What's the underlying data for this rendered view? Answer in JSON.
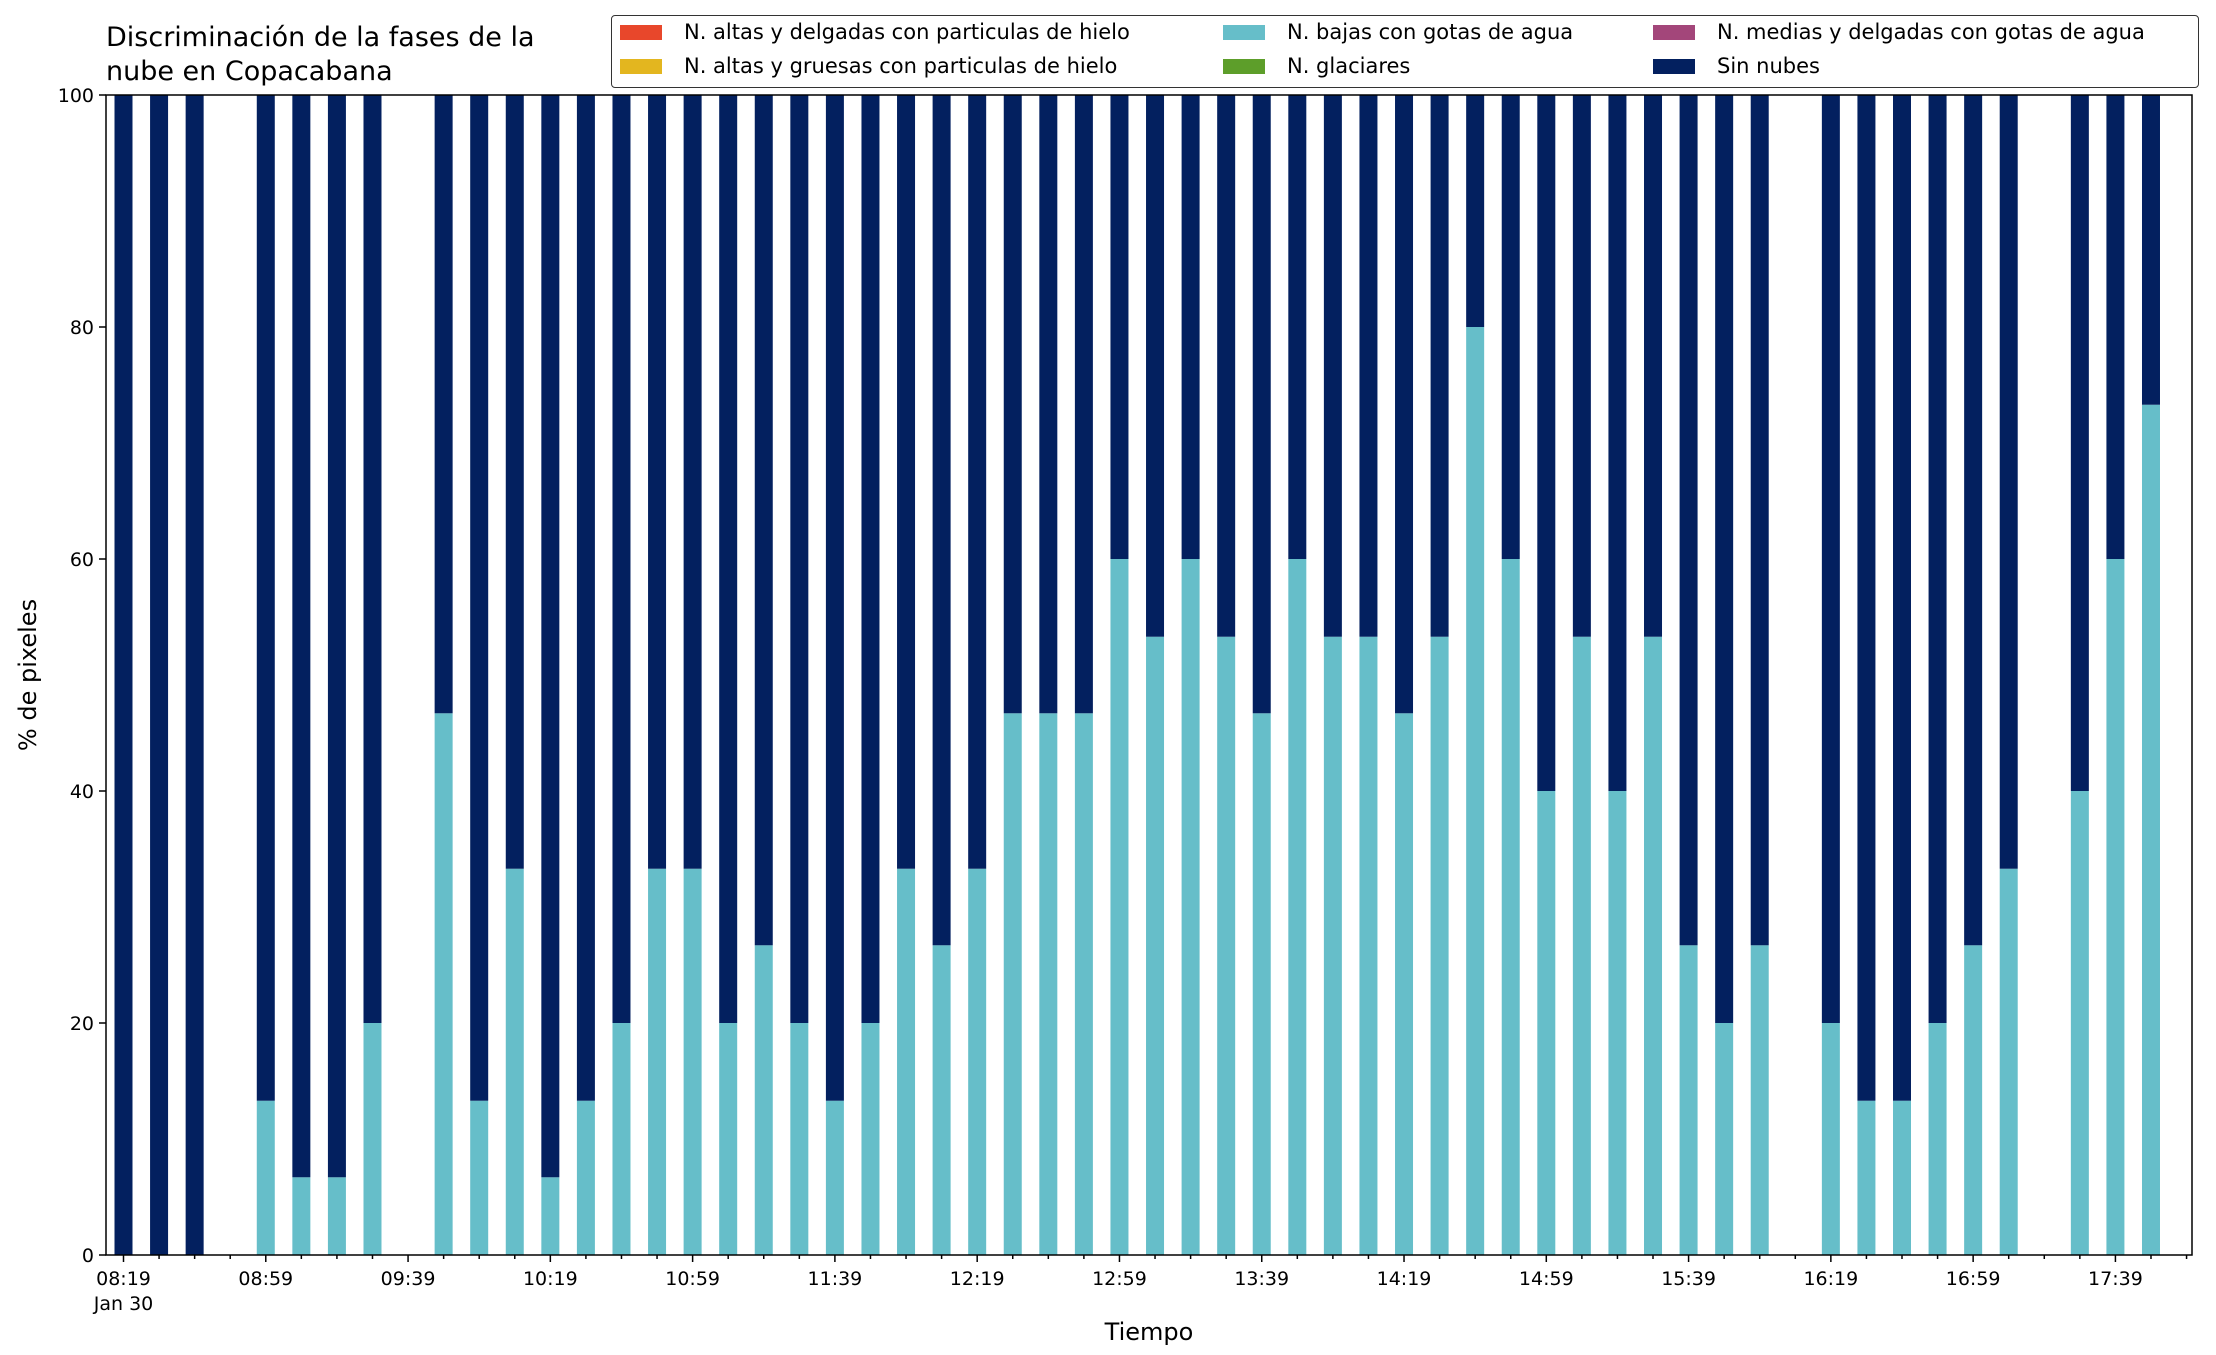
{
  "title_lines": [
    "Discriminación de la fases de la",
    "nube en Copacabana"
  ],
  "chart_data": {
    "type": "bar",
    "stacked": true,
    "title": "Discriminación de la fases de la nube en Copacabana",
    "xlabel": "Tiempo",
    "ylabel": "% de pixeles",
    "ylim": [
      0,
      100
    ],
    "yticks": [
      0,
      20,
      40,
      60,
      80,
      100
    ],
    "x": [
      "08:19",
      "08:29",
      "08:39",
      "08:49",
      "08:59",
      "09:09",
      "09:19",
      "09:29",
      "09:39",
      "09:49",
      "09:59",
      "10:09",
      "10:19",
      "10:29",
      "10:39",
      "10:49",
      "10:59",
      "11:09",
      "11:19",
      "11:29",
      "11:39",
      "11:49",
      "11:59",
      "12:09",
      "12:19",
      "12:29",
      "12:39",
      "12:49",
      "12:59",
      "13:09",
      "13:19",
      "13:29",
      "13:39",
      "13:49",
      "13:59",
      "14:09",
      "14:19",
      "14:29",
      "14:39",
      "14:49",
      "14:59",
      "15:09",
      "15:19",
      "15:29",
      "15:39",
      "15:49",
      "15:59",
      "16:09",
      "16:19",
      "16:29",
      "16:39",
      "16:49",
      "16:59",
      "17:09",
      "17:19",
      "17:29",
      "17:39",
      "17:49",
      "17:59"
    ],
    "xtick_labels": [
      "08:19",
      "08:59",
      "09:39",
      "10:19",
      "10:59",
      "11:39",
      "12:19",
      "12:59",
      "13:39",
      "14:19",
      "14:59",
      "15:39",
      "16:19",
      "16:59",
      "17:39"
    ],
    "xtick_sublabel": "Jan 30",
    "legend_position": "top-right",
    "legend_columns": 3,
    "series": [
      {
        "name": "N. altas y delgadas con particulas de hielo",
        "color": "#e8472b",
        "values": [
          0,
          0,
          0,
          null,
          0,
          0,
          0,
          0,
          null,
          0,
          0,
          0,
          0,
          0,
          0,
          0,
          0,
          0,
          0,
          0,
          0,
          0,
          0,
          0,
          0,
          0,
          0,
          0,
          0,
          0,
          0,
          0,
          0,
          0,
          0,
          0,
          0,
          0,
          0,
          0,
          0,
          0,
          0,
          0,
          0,
          0,
          0,
          null,
          0,
          0,
          0,
          0,
          0,
          0,
          null,
          0,
          0,
          0,
          null
        ]
      },
      {
        "name": "N. altas y gruesas con particulas de hielo",
        "color": "#e3b61f",
        "values": [
          0,
          0,
          0,
          null,
          0,
          0,
          0,
          0,
          null,
          0,
          0,
          0,
          0,
          0,
          0,
          0,
          0,
          0,
          0,
          0,
          0,
          0,
          0,
          0,
          0,
          0,
          0,
          0,
          0,
          0,
          0,
          0,
          0,
          0,
          0,
          0,
          0,
          0,
          0,
          0,
          0,
          0,
          0,
          0,
          0,
          0,
          0,
          null,
          0,
          0,
          0,
          0,
          0,
          0,
          null,
          0,
          0,
          0,
          null
        ]
      },
      {
        "name": "N. bajas con gotas de agua",
        "color": "#66bec9",
        "values": [
          0,
          0,
          0,
          null,
          13.3,
          6.7,
          6.7,
          20,
          null,
          46.7,
          13.3,
          33.3,
          6.7,
          13.3,
          20,
          33.3,
          33.3,
          20,
          26.7,
          20,
          13.3,
          20,
          33.3,
          26.7,
          33.3,
          46.7,
          46.7,
          46.7,
          60,
          53.3,
          60,
          53.3,
          46.7,
          60,
          53.3,
          53.3,
          46.7,
          53.3,
          80,
          60,
          40,
          53.3,
          40,
          53.3,
          26.7,
          20,
          26.7,
          null,
          20,
          13.3,
          13.3,
          20,
          26.7,
          33.3,
          null,
          40,
          60,
          73.3,
          null
        ]
      },
      {
        "name": "N. glaciares",
        "color": "#5d9e2a",
        "values": [
          0,
          0,
          0,
          null,
          0,
          0,
          0,
          0,
          null,
          0,
          0,
          0,
          0,
          0,
          0,
          0,
          0,
          0,
          0,
          0,
          0,
          0,
          0,
          0,
          0,
          0,
          0,
          0,
          0,
          0,
          0,
          0,
          0,
          0,
          0,
          0,
          0,
          0,
          0,
          0,
          0,
          0,
          0,
          0,
          0,
          0,
          0,
          null,
          0,
          0,
          0,
          0,
          0,
          0,
          null,
          0,
          0,
          0,
          null
        ]
      },
      {
        "name": "N. medias y delgadas con gotas de agua",
        "color": "#a3467a",
        "values": [
          0,
          0,
          0,
          null,
          0,
          0,
          0,
          0,
          null,
          0,
          0,
          0,
          0,
          0,
          0,
          0,
          0,
          0,
          0,
          0,
          0,
          0,
          0,
          0,
          0,
          0,
          0,
          0,
          0,
          0,
          0,
          0,
          0,
          0,
          0,
          0,
          0,
          0,
          0,
          0,
          0,
          0,
          0,
          0,
          0,
          0,
          0,
          null,
          0,
          0,
          0,
          0,
          0,
          0,
          null,
          0,
          0,
          0,
          null
        ]
      },
      {
        "name": "Sin nubes",
        "color": "#03205f",
        "values": [
          100,
          100,
          100,
          null,
          86.7,
          93.3,
          93.3,
          80,
          null,
          53.3,
          86.7,
          66.7,
          93.3,
          86.7,
          80,
          66.7,
          66.7,
          80,
          73.3,
          80,
          86.7,
          80,
          66.7,
          73.3,
          66.7,
          53.3,
          53.3,
          53.3,
          40,
          46.7,
          40,
          46.7,
          53.3,
          40,
          46.7,
          46.7,
          53.3,
          46.7,
          20,
          40,
          60,
          46.7,
          60,
          46.7,
          73.3,
          80,
          73.3,
          null,
          80,
          86.7,
          86.7,
          80,
          73.3,
          66.7,
          null,
          60,
          40,
          26.7,
          null
        ]
      }
    ]
  }
}
